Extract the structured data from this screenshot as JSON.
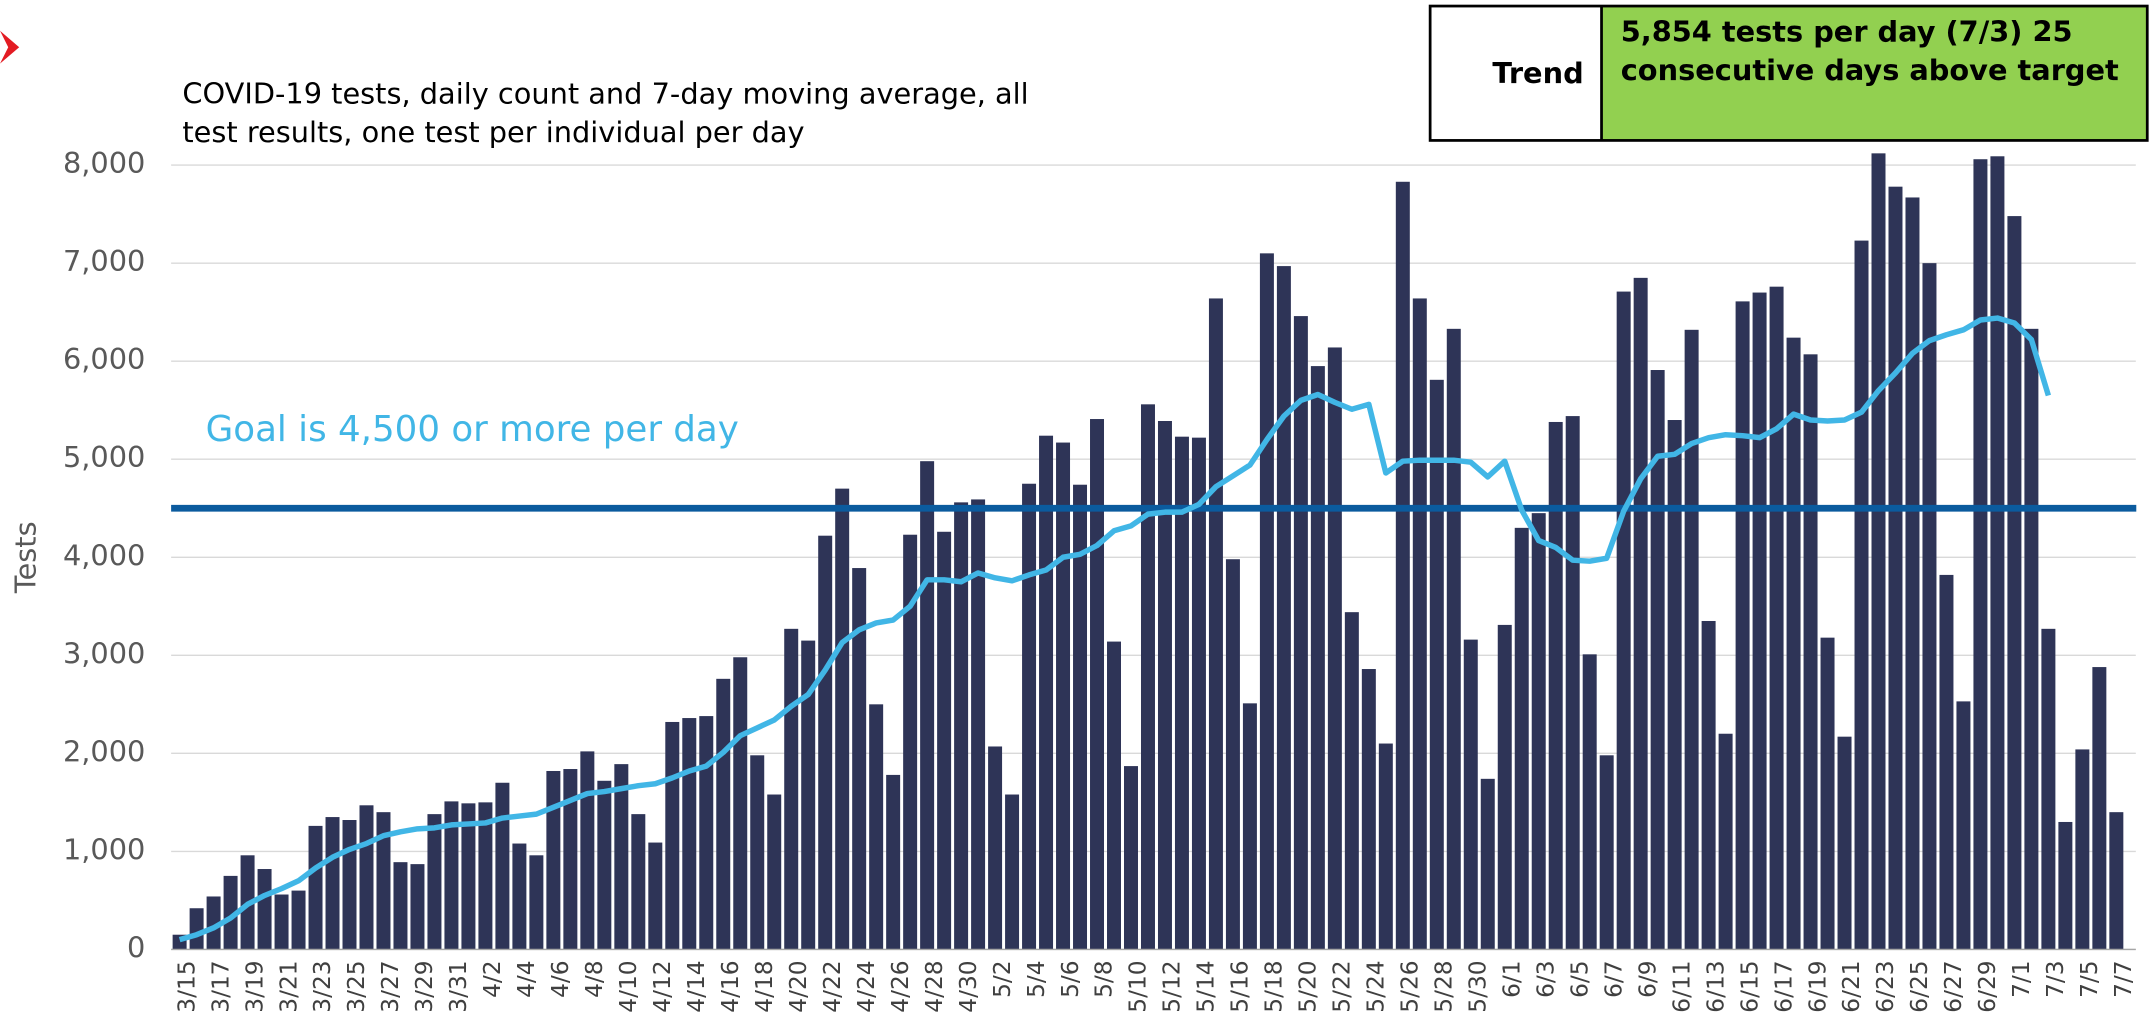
{
  "chart_data": {
    "type": "bar",
    "title": "COVID-19 tests, daily count and 7-day moving average, all test results, one test per individual per day",
    "y_label": "Tests",
    "annotation": "Goal is 4,500 or more per day",
    "goal_line": 4500,
    "goal_color": "#0b5b9e",
    "trend_box": {
      "label": "Trend",
      "text": "5,854 tests per day (7/3) 25 consecutive days above target",
      "color": "#92d050"
    },
    "categories": [
      "3/15",
      null,
      "3/17",
      null,
      "3/19",
      null,
      "3/21",
      null,
      "3/23",
      null,
      "3/25",
      null,
      "3/27",
      null,
      "3/29",
      null,
      "3/31",
      null,
      "4/2",
      null,
      "4/4",
      null,
      "4/6",
      null,
      "4/8",
      null,
      "4/10",
      null,
      "4/12",
      null,
      "4/14",
      null,
      "4/16",
      null,
      "4/18",
      null,
      "4/20",
      null,
      "4/22",
      null,
      "4/24",
      null,
      "4/26",
      null,
      "4/28",
      null,
      "4/30",
      null,
      "5/2",
      null,
      "5/4",
      null,
      "5/6",
      null,
      "5/8",
      null,
      "5/10",
      null,
      "5/12",
      null,
      "5/14",
      null,
      "5/16",
      null,
      "5/18",
      null,
      "5/20",
      null,
      "5/22",
      null,
      "5/24",
      null,
      "5/26",
      null,
      "5/28",
      null,
      "5/30",
      null,
      "6/1",
      null,
      "6/3",
      null,
      "6/5",
      null,
      "6/7",
      null,
      "6/9",
      null,
      "6/11",
      null,
      "6/13",
      null,
      "6/15",
      null,
      "6/17",
      null,
      "6/19",
      null,
      "6/21",
      null,
      "6/23",
      null,
      "6/25",
      null,
      "6/27",
      null,
      "6/29",
      null,
      "7/1",
      null,
      "7/3",
      null,
      "7/5",
      null,
      "7/7"
    ],
    "series": [
      {
        "type": "bar",
        "color": "#2e3457",
        "values": [
          150,
          420,
          540,
          750,
          960,
          820,
          560,
          600,
          1260,
          1350,
          1320,
          1470,
          1400,
          890,
          870,
          1380,
          1510,
          1490,
          1500,
          1700,
          1080,
          960,
          1820,
          1840,
          2020,
          1720,
          1890,
          1380,
          1090,
          2320,
          2360,
          2380,
          2760,
          2980,
          1980,
          1580,
          3270,
          3150,
          4220,
          4700,
          3890,
          2500,
          1780,
          4230,
          4980,
          4260,
          4560,
          4590,
          2070,
          1580,
          4750,
          5240,
          5170,
          4740,
          5410,
          3140,
          1870,
          5560,
          5390,
          5230,
          5220,
          6640,
          3980,
          2510,
          7100,
          6970,
          6460,
          5950,
          6140,
          3440,
          2860,
          2100,
          7830,
          6640,
          5810,
          6330,
          3160,
          1740,
          3310,
          4300,
          4450,
          5380,
          5440,
          3010,
          1980,
          6710,
          6850,
          5910,
          5400,
          6320,
          3350,
          2200,
          6610,
          6700,
          6760,
          6240,
          6070,
          3180,
          2170,
          7230,
          8120,
          7780,
          7670,
          7000,
          3820,
          2530,
          8060,
          8090,
          7480,
          6330,
          3270,
          1300,
          2040,
          2880,
          1400
        ]
      },
      {
        "type": "line",
        "color": "#41b6e6",
        "values": [
          100,
          150,
          220,
          320,
          460,
          550,
          620,
          700,
          830,
          940,
          1020,
          1080,
          1160,
          1200,
          1230,
          1240,
          1270,
          1280,
          1290,
          1340,
          1360,
          1380,
          1450,
          1520,
          1590,
          1610,
          1640,
          1670,
          1690,
          1750,
          1820,
          1870,
          2010,
          2180,
          2260,
          2340,
          2480,
          2600,
          2850,
          3130,
          3260,
          3330,
          3360,
          3500,
          3770,
          3770,
          3750,
          3840,
          3790,
          3760,
          3820,
          3870,
          4000,
          4030,
          4120,
          4270,
          4320,
          4440,
          4460,
          4460,
          4540,
          4720,
          4830,
          4940,
          5200,
          5440,
          5600,
          5660,
          5580,
          5510,
          5560,
          4860,
          4980,
          4990,
          4990,
          4990,
          4970,
          4820,
          4980,
          4480,
          4170,
          4100,
          3970,
          3960,
          3990,
          4470,
          4800,
          5030,
          5050,
          5160,
          5220,
          5250,
          5240,
          5220,
          5310,
          5460,
          5400,
          5390,
          5400,
          5480,
          5700,
          5880,
          6080,
          6210,
          6270,
          6320,
          6420,
          6440,
          6390,
          6220,
          5650,
          null,
          null,
          null,
          null
        ]
      }
    ],
    "ylim": [
      0,
      8000
    ],
    "yticks": [
      0,
      {
        "value": 1000,
        "label": "1,000"
      },
      {
        "value": 2000,
        "label": "2,000"
      },
      {
        "value": 3000,
        "label": "3,000"
      },
      {
        "value": 4000,
        "label": "4,000"
      },
      {
        "value": 5000,
        "label": "5,000"
      },
      {
        "value": 6000,
        "label": "6,000"
      },
      {
        "value": 7000,
        "label": "7,000"
      },
      {
        "value": 8000,
        "label": "8,000"
      }
    ],
    "grid": true
  }
}
